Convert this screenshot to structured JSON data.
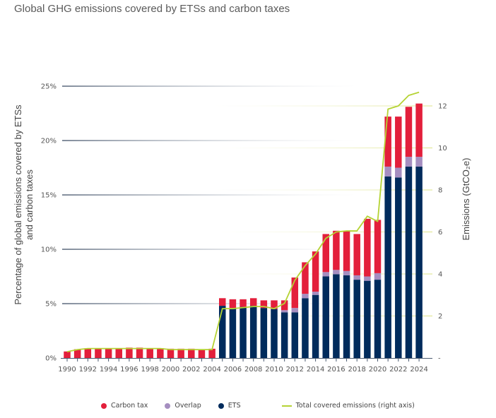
{
  "title": "Global GHG emissions covered by ETSs and carbon taxes",
  "colors": {
    "carbon_tax": "#e31f3b",
    "overlap": "#a58ec0",
    "ets": "#002b5c",
    "line": "#b5d334",
    "left_grid": "#4a5a70",
    "right_grid": "#e9ecb8"
  },
  "legend": {
    "carbon_tax": "Carbon tax",
    "overlap": "Overlap",
    "ets": "ETS",
    "line": "Total covered emissions (right axis)"
  },
  "chart_data": {
    "type": "bar",
    "title": "Global GHG emissions covered by ETSs and carbon taxes",
    "xlabel": "",
    "ylabel": "Percentage of global emissions covered by ETSs and carbon taxes",
    "y2label": "Emissions (GtCO₂e)",
    "ylim": [
      0,
      25
    ],
    "y2lim": [
      0,
      13
    ],
    "yticks": [
      "0%",
      "5%",
      "10%",
      "15%",
      "20%",
      "25%"
    ],
    "y2ticks": [
      "-",
      "2",
      "4",
      "6",
      "8",
      "10",
      "12"
    ],
    "categories": [
      1990,
      1991,
      1992,
      1993,
      1994,
      1995,
      1996,
      1997,
      1998,
      1999,
      2000,
      2001,
      2002,
      2003,
      2004,
      2005,
      2006,
      2007,
      2008,
      2009,
      2010,
      2011,
      2012,
      2013,
      2014,
      2015,
      2016,
      2017,
      2018,
      2019,
      2020,
      2021,
      2022,
      2023,
      2024
    ],
    "xtick_labels": [
      "1990",
      "1992",
      "1994",
      "1996",
      "1998",
      "2000",
      "2002",
      "2004",
      "2006",
      "2008",
      "2010",
      "2012",
      "2014",
      "2016",
      "2018",
      "2020",
      "2022",
      "2024"
    ],
    "stacked": true,
    "series": [
      {
        "name": "ETS",
        "axis": "left",
        "values": [
          0,
          0,
          0,
          0,
          0,
          0,
          0,
          0,
          0,
          0,
          0,
          0,
          0,
          0,
          0,
          4.8,
          4.6,
          4.7,
          4.8,
          4.6,
          4.5,
          4.2,
          4.2,
          5.5,
          5.8,
          7.5,
          7.7,
          7.6,
          7.2,
          7.1,
          7.2,
          16.7,
          16.6,
          17.6,
          17.6
        ]
      },
      {
        "name": "Overlap",
        "axis": "left",
        "values": [
          0,
          0,
          0,
          0,
          0,
          0,
          0,
          0,
          0,
          0,
          0,
          0,
          0,
          0,
          0,
          0,
          0,
          0,
          0,
          0,
          0,
          0.2,
          0.4,
          0.4,
          0.3,
          0.4,
          0.4,
          0.4,
          0.4,
          0.4,
          0.6,
          0.9,
          0.9,
          0.9,
          0.9
        ]
      },
      {
        "name": "Carbon tax",
        "axis": "left",
        "values": [
          0.6,
          0.8,
          0.9,
          0.9,
          0.9,
          0.9,
          0.95,
          0.95,
          0.9,
          0.9,
          0.85,
          0.85,
          0.85,
          0.8,
          0.85,
          0.7,
          0.8,
          0.7,
          0.7,
          0.7,
          0.8,
          0.9,
          2.8,
          2.9,
          3.7,
          3.5,
          3.6,
          3.7,
          3.8,
          5.3,
          4.9,
          4.6,
          4.7,
          4.6,
          4.9
        ]
      },
      {
        "name": "Total covered emissions (right axis)",
        "type": "line",
        "axis": "right",
        "values": [
          0.3,
          0.4,
          0.45,
          0.45,
          0.45,
          0.45,
          0.45,
          0.45,
          0.45,
          0.45,
          0.4,
          0.4,
          0.4,
          0.4,
          0.4,
          2.35,
          2.35,
          2.4,
          2.45,
          2.45,
          2.35,
          2.6,
          3.7,
          4.4,
          4.95,
          5.7,
          6.0,
          6.05,
          6.05,
          6.75,
          6.5,
          11.85,
          12.0,
          12.5,
          12.65
        ]
      }
    ],
    "legend_position": "bottom",
    "grid": true
  }
}
